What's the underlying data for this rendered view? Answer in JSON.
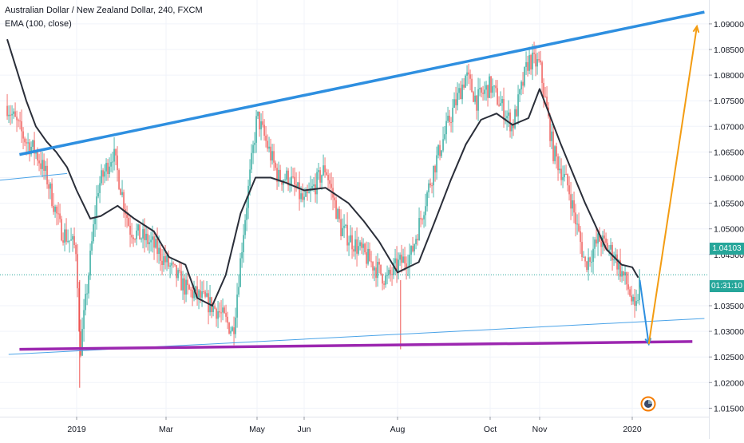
{
  "header": {
    "title": "Australian Dollar / New Zealand Dollar, 240, FXCM",
    "indicator": "EMA (100, close)"
  },
  "badges": {
    "last_price": "1.04103",
    "countdown": "01:31:10"
  },
  "colors": {
    "up_candle": "#26a69a",
    "down_candle": "#ef5350",
    "ema_line": "#2a2e39",
    "upper_trendline": "#2e8fe0",
    "lower_thin_trendline": "#4aa3e8",
    "support_line": "#9c27b0",
    "projection_down": "#2e8fe0",
    "projection_up": "#f39c12",
    "price_line": "#26a69a"
  },
  "icons": {
    "bottom_tool": "magnet-circle-icon"
  },
  "chart_data": {
    "type": "candlestick",
    "title": "Australian Dollar / New Zealand Dollar, 240, FXCM",
    "xlabel": "",
    "ylabel": "",
    "y_axis_side": "right",
    "grid": true,
    "ylim": [
      1.0125,
      1.0935
    ],
    "x_tick_labels": [
      "2019",
      "Mar",
      "May",
      "Jun",
      "Aug",
      "Oct",
      "Nov",
      "2020"
    ],
    "y_tick_labels": [
      "1.09000",
      "1.08500",
      "1.08000",
      "1.07500",
      "1.07000",
      "1.06500",
      "1.06000",
      "1.05500",
      "1.05000",
      "1.04500",
      "1.03500",
      "1.03000",
      "1.02500",
      "1.02000",
      "1.01500"
    ],
    "last_price": 1.04103,
    "series": [
      {
        "name": "EMA (100, close)",
        "type": "line",
        "x": [
          "2018-11-11",
          "2018-11-18",
          "2018-11-25",
          "2018-12-02",
          "2018-12-10",
          "2018-12-17",
          "2018-12-25",
          "2019-01-01",
          "2019-01-10",
          "2019-01-17",
          "2019-01-28",
          "2019-02-08",
          "2019-02-21",
          "2019-03-03",
          "2019-03-14",
          "2019-03-22",
          "2019-04-01",
          "2019-04-10",
          "2019-04-20",
          "2019-04-30",
          "2019-05-10",
          "2019-05-20",
          "2019-06-01",
          "2019-06-15",
          "2019-06-30",
          "2019-07-10",
          "2019-07-20",
          "2019-08-01",
          "2019-08-15",
          "2019-08-25",
          "2019-09-05",
          "2019-09-15",
          "2019-09-25",
          "2019-10-05",
          "2019-10-15",
          "2019-10-25",
          "2019-11-01",
          "2019-11-15",
          "2019-12-01",
          "2019-12-15",
          "2019-12-25",
          "2020-01-01",
          "2020-01-05"
        ],
        "y": [
          1.087,
          1.081,
          1.075,
          1.07,
          1.067,
          1.065,
          1.062,
          1.0575,
          1.052,
          1.0525,
          1.0545,
          1.052,
          1.0495,
          1.0445,
          1.043,
          1.0365,
          1.035,
          1.041,
          1.053,
          1.06,
          1.06,
          1.059,
          1.0575,
          1.058,
          1.055,
          1.0515,
          1.0475,
          1.0415,
          1.0435,
          1.051,
          1.0595,
          1.0665,
          1.0713,
          1.0725,
          1.0703,
          1.0716,
          1.0773,
          1.0665,
          1.055,
          1.046,
          1.043,
          1.0425,
          1.0405
        ]
      },
      {
        "name": "Price (4H candles, approximate path)",
        "type": "candlestick",
        "x": [
          "2018-11-11",
          "2018-11-25",
          "2018-12-02",
          "2018-12-10",
          "2018-12-20",
          "2019-01-01",
          "2019-01-03",
          "2019-01-15",
          "2019-01-25",
          "2019-02-05",
          "2019-02-20",
          "2019-03-05",
          "2019-03-15",
          "2019-03-22",
          "2019-04-05",
          "2019-04-15",
          "2019-04-22",
          "2019-05-01",
          "2019-05-15",
          "2019-05-22",
          "2019-06-01",
          "2019-06-15",
          "2019-06-25",
          "2019-07-10",
          "2019-07-25",
          "2019-08-01",
          "2019-08-10",
          "2019-08-25",
          "2019-09-05",
          "2019-09-15",
          "2019-09-22",
          "2019-10-01",
          "2019-10-15",
          "2019-10-25",
          "2019-11-01",
          "2019-11-10",
          "2019-11-20",
          "2019-12-01",
          "2019-12-10",
          "2019-12-20",
          "2019-12-30",
          "2020-01-03",
          "2020-01-06"
        ],
        "y": [
          1.074,
          1.067,
          1.065,
          1.06,
          1.05,
          1.046,
          1.025,
          1.058,
          1.065,
          1.05,
          1.047,
          1.042,
          1.038,
          1.037,
          1.034,
          1.03,
          1.05,
          1.072,
          1.06,
          1.06,
          1.055,
          1.062,
          1.05,
          1.045,
          1.04,
          1.043,
          1.045,
          1.062,
          1.072,
          1.08,
          1.075,
          1.078,
          1.07,
          1.083,
          1.082,
          1.065,
          1.058,
          1.043,
          1.048,
          1.045,
          1.038,
          1.033,
          1.04
        ]
      },
      {
        "name": "Upper trendline",
        "type": "line",
        "x": [
          "2018-11-20",
          "2020-02-18"
        ],
        "y": [
          1.0645,
          1.0923
        ]
      },
      {
        "name": "Lower thin trendline",
        "type": "line",
        "x": [
          "2018-11-12",
          "2020-02-18"
        ],
        "y": [
          1.0255,
          1.0325
        ]
      },
      {
        "name": "Support line",
        "type": "line",
        "x": [
          "2018-11-20",
          "2020-02-10"
        ],
        "y": [
          1.0265,
          1.028
        ]
      },
      {
        "name": "Projection down",
        "type": "line",
        "x": [
          "2020-01-06",
          "2020-01-12"
        ],
        "y": [
          1.04,
          1.0275
        ]
      },
      {
        "name": "Projection up",
        "type": "line",
        "x": [
          "2020-01-12",
          "2020-02-13"
        ],
        "y": [
          1.0275,
          1.0895
        ]
      }
    ]
  }
}
